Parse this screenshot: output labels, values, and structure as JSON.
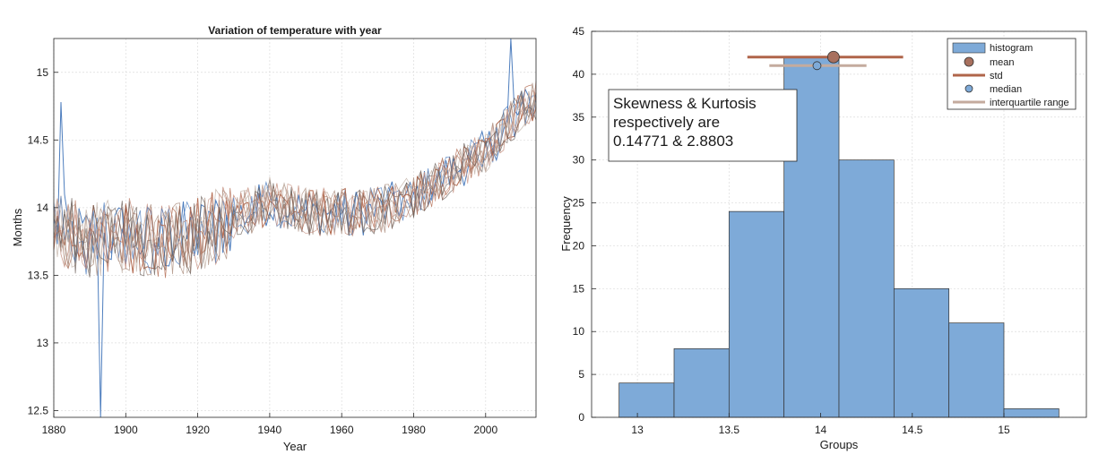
{
  "chart_data": [
    {
      "type": "line",
      "title": "Variation of temperature with year",
      "xlabel": "Year",
      "ylabel": "Months",
      "xlim": [
        1880,
        2014
      ],
      "ylim": [
        12.45,
        15.25
      ],
      "xticks": [
        1880,
        1900,
        1920,
        1940,
        1960,
        1980,
        2000
      ],
      "yticks": [
        12.5,
        13,
        13.5,
        14,
        14.5,
        15
      ],
      "grid": true,
      "series_count": 12,
      "series_colors": [
        "#4477bb",
        "#b0654a",
        "#c89484",
        "#a88878",
        "#bfaea2",
        "#6a5e58"
      ],
      "trend": {
        "x": [
          1880,
          1890,
          1900,
          1910,
          1920,
          1930,
          1940,
          1950,
          1960,
          1970,
          1980,
          1990,
          2000,
          2010,
          2014
        ],
        "y": [
          13.85,
          13.75,
          13.8,
          13.75,
          13.8,
          13.92,
          14.05,
          13.97,
          13.97,
          13.97,
          14.08,
          14.25,
          14.42,
          14.72,
          14.8
        ]
      },
      "annotations_extreme": [
        {
          "x": 1882,
          "y": 14.78
        },
        {
          "x": 1893,
          "y": 12.45
        },
        {
          "x": 2007,
          "y": 15.25
        }
      ]
    },
    {
      "type": "bar",
      "xlabel": "Groups",
      "ylabel": "Frequency",
      "xlim": [
        12.75,
        15.45
      ],
      "ylim": [
        0,
        45
      ],
      "xticks": [
        13,
        13.5,
        14,
        14.5,
        15
      ],
      "yticks": [
        0,
        5,
        10,
        15,
        20,
        25,
        30,
        35,
        40,
        45
      ],
      "grid": true,
      "bin_edges": [
        12.9,
        13.2,
        13.5,
        13.8,
        14.1,
        14.4,
        14.7,
        15.0,
        15.3
      ],
      "values": [
        4,
        8,
        24,
        42,
        30,
        15,
        11,
        1
      ],
      "bar_color": "#7eaad8",
      "mean": {
        "x": 14.07,
        "y": 42
      },
      "median": {
        "x": 13.98,
        "y": 41
      },
      "std": {
        "x": [
          13.6,
          14.45
        ],
        "y": 42
      },
      "iqr": {
        "x": [
          13.72,
          14.25
        ],
        "y": 41
      },
      "legend": {
        "position": "top-right",
        "entries": [
          "histogram",
          "mean",
          "std",
          "median",
          "interquartile range"
        ]
      },
      "annotation": {
        "lines": [
          "Skewness & Kurtosis",
          "respectively are",
          "0.14771 & 2.8803"
        ]
      },
      "colors": {
        "mean": "#a8705e",
        "std": "#b0654a",
        "median": "#7eaad8",
        "iqr": "#c4ab9e"
      }
    }
  ]
}
